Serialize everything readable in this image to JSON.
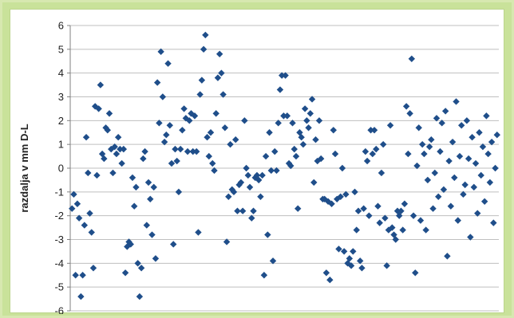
{
  "chart_data": {
    "type": "scatter",
    "title": "",
    "xlabel": "",
    "ylabel": "razdalja v mm D-L",
    "ylim": [
      -6,
      6
    ],
    "yticks": [
      6,
      5,
      4,
      3,
      2,
      1,
      0,
      -1,
      -2,
      -3,
      -4,
      -5,
      -6
    ],
    "grid": true,
    "marker": "diamond",
    "colors": {
      "marker": "#1f4e8a",
      "grid": "#bfbfbf",
      "axis": "#808080"
    },
    "x": [
      1,
      2,
      3,
      4,
      5,
      6,
      7,
      8,
      9,
      10,
      11,
      12,
      13,
      14,
      15,
      16,
      17,
      18,
      19,
      20,
      21,
      22,
      23,
      24,
      25,
      26,
      27,
      28,
      29,
      30,
      31,
      32,
      33,
      34,
      35,
      36,
      37,
      38,
      39,
      40,
      41,
      42,
      43,
      44,
      45,
      46,
      47,
      48,
      49,
      50,
      51,
      52,
      53,
      54,
      55,
      56,
      57,
      58,
      59,
      60,
      61,
      62,
      63,
      64,
      65,
      66,
      67,
      68,
      69,
      70,
      71,
      72,
      73,
      74,
      75,
      76,
      77,
      78,
      79,
      80,
      81,
      82,
      83,
      84,
      85,
      86,
      87,
      88,
      89,
      90,
      91,
      92,
      93,
      94,
      95,
      96,
      97,
      98,
      99,
      100,
      101,
      102,
      103,
      104,
      105,
      106,
      107,
      108,
      109,
      110,
      111,
      112,
      113,
      114,
      115,
      116,
      117,
      118,
      119,
      120,
      121,
      122,
      123,
      124,
      125,
      126,
      127,
      128,
      129,
      130,
      131,
      132,
      133,
      134,
      135,
      136,
      137,
      138,
      139,
      140,
      141,
      142,
      143,
      144,
      145,
      146,
      147,
      148,
      149,
      150,
      151,
      152,
      153,
      154,
      155,
      156,
      157,
      158,
      159,
      160,
      161,
      162,
      163,
      164,
      165,
      166,
      167,
      168,
      169,
      170,
      171,
      172,
      173,
      174,
      175,
      176,
      177,
      178,
      179,
      180,
      181,
      182,
      183,
      184,
      185,
      186,
      187,
      188,
      189,
      190,
      191,
      192,
      193,
      194,
      195,
      196,
      197,
      198,
      199,
      200,
      201,
      202,
      203,
      204,
      205,
      206,
      207,
      208,
      209,
      210,
      211,
      212,
      213,
      214,
      215,
      216,
      217,
      218,
      219,
      220,
      221,
      222,
      223,
      224,
      225,
      226,
      227,
      228,
      229,
      230,
      231,
      232,
      233,
      234,
      235,
      236,
      237,
      238,
      239,
      240
    ],
    "y": [
      -1.7,
      -1.1,
      -4.5,
      -1.5,
      -2.1,
      -5.4,
      -4.5,
      -2.4,
      1.3,
      -0.2,
      -1.9,
      -2.7,
      -4.2,
      2.6,
      -0.3,
      2.5,
      3.5,
      0.6,
      0.4,
      1.7,
      1.6,
      2.3,
      0.8,
      -0.2,
      0.9,
      0.6,
      1.3,
      0.8,
      0.2,
      0.8,
      -4.4,
      -3.3,
      -3.1,
      -3.2,
      -0.4,
      -1.6,
      -0.8,
      -4.0,
      -5.4,
      -4.2,
      0.4,
      0.7,
      -2.4,
      -0.6,
      -1.3,
      -2.8,
      -0.8,
      -3.8,
      3.6,
      1.9,
      4.9,
      3.0,
      1.1,
      1.4,
      4.4,
      1.8,
      0.2,
      -3.2,
      0.8,
      0.3,
      -1.0,
      0.8,
      1.6,
      2.5,
      2.1,
      0.7,
      2.0,
      2.3,
      0.7,
      2.2,
      0.7,
      -2.7,
      3.1,
      3.7,
      5.0,
      5.6,
      1.3,
      0.5,
      1.5,
      0.2,
      -0.1,
      2.3,
      3.8,
      4.8,
      4.0,
      3.1,
      1.7,
      -3.1,
      -1.2,
      1.0,
      -0.9,
      -1.0,
      1.2,
      -1.8,
      -0.7,
      -0.6,
      -1.8,
      2.0,
      0.0,
      -0.3,
      -0.8,
      -2.1,
      -1.8,
      -0.4,
      -0.3,
      -0.5,
      -1.2,
      -0.3,
      -4.5,
      0.5,
      -2.8,
      1.5,
      -0.1,
      -3.9,
      0.7,
      -0.1,
      1.9,
      3.3,
      3.9,
      2.2,
      3.9,
      2.2,
      0.2,
      0.1,
      1.9,
      0.8,
      0.5,
      -1.7,
      1.5,
      1.3,
      1.0,
      2.5,
      2.0,
      1.7,
      2.3,
      2.9,
      -0.6,
      1.2,
      0.3,
      2.0,
      0.4,
      -1.3,
      -1.3,
      -4.4,
      -1.4,
      -4.7,
      -1.5,
      1.6,
      0.6,
      -1.3,
      -3.4,
      -1.2,
      0.0,
      -3.5,
      -1.1,
      -4.0,
      -3.8,
      -4.1,
      -3.5,
      -1.0,
      -2.6,
      -1.8,
      -3.9,
      -4.2,
      -1.7,
      0.7,
      0.3,
      -2.0,
      1.6,
      0.6,
      1.6,
      0.8,
      -1.6,
      -2.3,
      -0.2,
      1.0,
      -2.1,
      -4.1,
      -2.6,
      1.8,
      -2.5,
      -2.8,
      -3.0,
      -1.8,
      -2.0,
      -1.8,
      -2.6,
      -1.5,
      2.6,
      0.6,
      2.3,
      4.6,
      -2.0,
      -4.4,
      0.1,
      1.7,
      -2.2,
      1.0,
      0.6,
      -2.6,
      -0.5,
      0.9,
      1.2,
      -1.7,
      -0.2,
      2.1,
      -1.2,
      0.7,
      1.9,
      -0.9,
      2.4,
      -3.7,
      0.3,
      -1.6,
      1.1,
      -0.4,
      2.8,
      -2.2,
      0.5,
      1.8,
      -1.1,
      -0.7,
      2.0,
      0.4,
      -2.9,
      1.3,
      -0.8,
      0.2,
      -1.9,
      1.5,
      -0.3,
      0.9,
      -1.4,
      2.2,
      0.6,
      -0.6,
      1.1,
      -2.3,
      0.0,
      1.4
    ]
  }
}
